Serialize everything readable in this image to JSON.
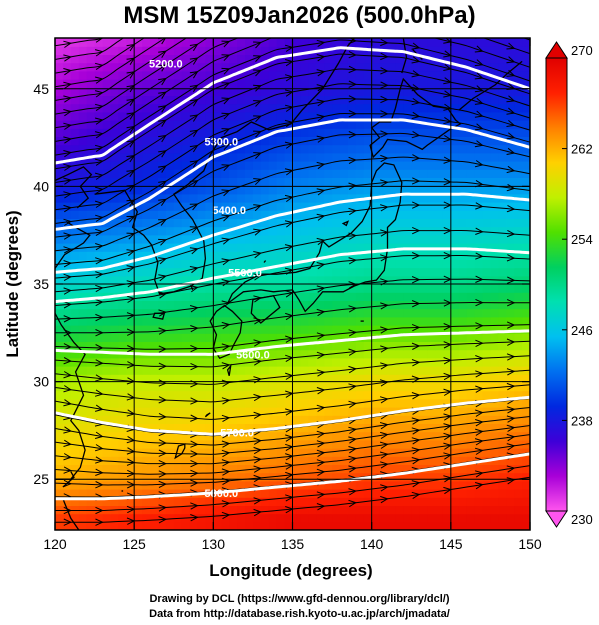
{
  "title": "MSM 15Z09Jan2026 (500.0hPa)",
  "credits": {
    "line1": "Drawing by DCL (https://www.gfd-dennou.org/library/dcl/)",
    "line2": "Data from http://database.rish.kyoto-u.ac.jp/arch/jmadata/"
  },
  "chart_data": {
    "type": "heatmap",
    "title": "MSM 15Z09Jan2026 (500.0hPa)",
    "xlabel": "Longitude (degrees)",
    "ylabel": "Latitude  (degrees)",
    "xlim": [
      120,
      150
    ],
    "ylim": [
      22.4,
      47.6
    ],
    "xticks": [
      120,
      125,
      130,
      135,
      140,
      145,
      150
    ],
    "yticks": [
      25,
      30,
      35,
      40,
      45
    ],
    "grid": true,
    "colorbar": {
      "min": 230,
      "max": 270,
      "ticks": [
        230,
        238,
        246,
        254,
        262,
        270
      ],
      "colors": [
        "#ff55ee",
        "#a800d8",
        "#3d00d8",
        "#0028e0",
        "#0070f0",
        "#00c0f0",
        "#00e0b0",
        "#00d060",
        "#50e000",
        "#c0f000",
        "#ffd000",
        "#ff8000",
        "#ff2000",
        "#e00000"
      ]
    },
    "shaded_field": {
      "x": [
        120,
        125,
        130,
        135,
        140,
        145,
        150
      ],
      "y": [
        23,
        25,
        30,
        35,
        40,
        45,
        47.5
      ],
      "z": [
        [
          266,
          267,
          268,
          269,
          269,
          269,
          269
        ],
        [
          262,
          263,
          264,
          265,
          266,
          266,
          267
        ],
        [
          257,
          258,
          258,
          259,
          260,
          260,
          261
        ],
        [
          247,
          248,
          249,
          249,
          250,
          250,
          251
        ],
        [
          238,
          239,
          241,
          243,
          244,
          244,
          244
        ],
        [
          233,
          235,
          236,
          237,
          238,
          238,
          238
        ],
        [
          231,
          232,
          234,
          236,
          237,
          237,
          237
        ]
      ]
    },
    "contours": [
      {
        "label": "5200.0",
        "x": [
          120,
          123,
          126,
          130,
          134,
          138,
          142,
          146,
          150
        ],
        "y": [
          41.2,
          41.6,
          43.2,
          45.3,
          46.6,
          47.1,
          46.9,
          46.1,
          45.0
        ]
      },
      {
        "label": "5300.0",
        "x": [
          120,
          123,
          126,
          130,
          134,
          138,
          142,
          146,
          150
        ],
        "y": [
          37.8,
          38.1,
          39.4,
          41.5,
          42.8,
          43.4,
          43.4,
          42.9,
          42.0
        ]
      },
      {
        "label": "5400.0",
        "x": [
          120,
          123,
          126,
          130,
          134,
          138,
          142,
          146,
          150
        ],
        "y": [
          35.6,
          35.8,
          36.4,
          37.5,
          38.5,
          39.2,
          39.6,
          39.6,
          39.3
        ]
      },
      {
        "label": "5500.0",
        "x": [
          120,
          123,
          126,
          130,
          134,
          138,
          142,
          146,
          150
        ],
        "y": [
          34.1,
          34.3,
          34.6,
          35.3,
          35.9,
          36.5,
          36.8,
          36.8,
          36.6
        ]
      },
      {
        "label": "5600.0",
        "x": [
          120,
          123,
          126,
          130,
          134,
          138,
          142,
          146,
          150
        ],
        "y": [
          31.6,
          31.5,
          31.4,
          31.4,
          31.8,
          32.1,
          32.4,
          32.5,
          32.6
        ]
      },
      {
        "label": "5700.0",
        "x": [
          120,
          123,
          126,
          130,
          134,
          138,
          142,
          146,
          150
        ],
        "y": [
          28.4,
          27.9,
          27.5,
          27.3,
          27.6,
          28.0,
          28.5,
          28.9,
          29.2
        ]
      },
      {
        "label": "5800.0",
        "x": [
          120,
          123,
          126,
          130,
          134,
          138,
          142,
          146,
          150
        ],
        "y": [
          24.0,
          24.0,
          24.1,
          24.3,
          24.6,
          24.9,
          25.3,
          25.8,
          26.3
        ]
      }
    ],
    "contour_labels": [
      {
        "text": "5200.0",
        "x": 127.0,
        "y": 46.3
      },
      {
        "text": "5300.0",
        "x": 130.5,
        "y": 42.3
      },
      {
        "text": "5400.0",
        "x": 131.0,
        "y": 38.8
      },
      {
        "text": "5500.0",
        "x": 132.0,
        "y": 35.6
      },
      {
        "text": "5600.0",
        "x": 132.5,
        "y": 31.4
      },
      {
        "text": "5700.0",
        "x": 131.5,
        "y": 27.4
      },
      {
        "text": "5800.0",
        "x": 130.5,
        "y": 24.3
      }
    ],
    "vector_field": {
      "type": "streamlines",
      "direction": "eastward",
      "x_start": 120,
      "x_end": 150,
      "y_starts": [
        47.2,
        46.5,
        45.8,
        45.1,
        44.4,
        43.7,
        43.0,
        42.3,
        41.6,
        40.9,
        40.2,
        39.5,
        38.8,
        38.1,
        37.4,
        36.7,
        36.0,
        35.3,
        34.6,
        33.9,
        33.2,
        32.5,
        31.8,
        31.1,
        30.4,
        29.7,
        29.0,
        28.3,
        27.6,
        26.9,
        26.2,
        25.5,
        24.8,
        24.1,
        23.4,
        22.8
      ]
    },
    "coastline": "East Asia / Japan"
  }
}
